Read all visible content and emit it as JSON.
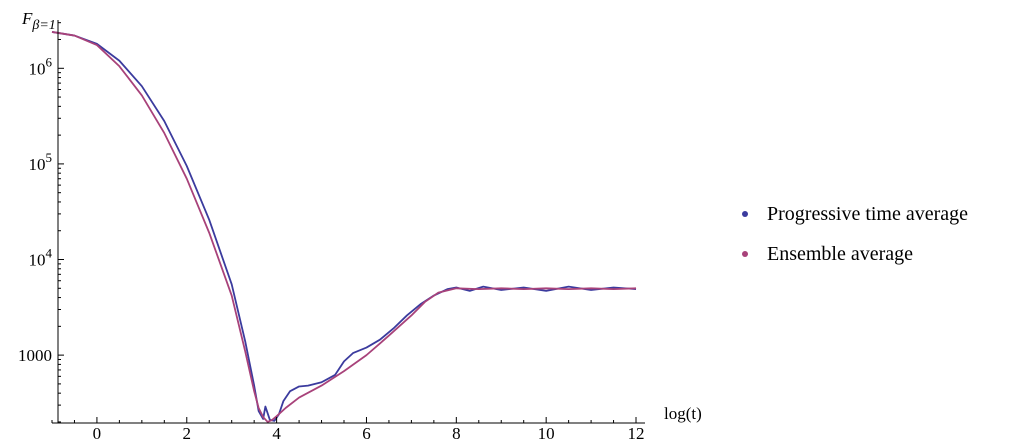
{
  "chart_data": {
    "type": "line",
    "y_title_base": "F",
    "y_title_sub": "β=1",
    "xlabel": "log(t)",
    "x_log_scale": false,
    "y_log_scale": true,
    "xlim": [
      -1,
      12.2
    ],
    "ylim": [
      195,
      3200000
    ],
    "x_ticks": [
      0,
      2,
      4,
      6,
      8,
      10,
      12
    ],
    "y_ticks": [
      {
        "value": 1000000,
        "base": "10",
        "exp": "6"
      },
      {
        "value": 100000,
        "base": "10",
        "exp": "5"
      },
      {
        "value": 10000,
        "base": "10",
        "exp": "4"
      },
      {
        "value": 1000,
        "base": "1000",
        "exp": ""
      }
    ],
    "grid": false,
    "legend_position": "right",
    "series": [
      {
        "name": "Progressive time average",
        "color": "#3b3b9e",
        "points": [
          [
            -1,
            2400000
          ],
          [
            -0.5,
            2200000
          ],
          [
            0,
            1800000
          ],
          [
            0.5,
            1200000
          ],
          [
            1,
            650000
          ],
          [
            1.5,
            280000
          ],
          [
            2,
            95000
          ],
          [
            2.5,
            26000
          ],
          [
            3,
            5500
          ],
          [
            3.3,
            1400
          ],
          [
            3.5,
            480
          ],
          [
            3.6,
            260
          ],
          [
            3.7,
            215
          ],
          [
            3.75,
            290
          ],
          [
            3.85,
            210
          ],
          [
            3.95,
            205
          ],
          [
            4.05,
            240
          ],
          [
            4.15,
            330
          ],
          [
            4.3,
            420
          ],
          [
            4.5,
            470
          ],
          [
            4.7,
            480
          ],
          [
            5.0,
            520
          ],
          [
            5.3,
            620
          ],
          [
            5.5,
            860
          ],
          [
            5.7,
            1050
          ],
          [
            6.0,
            1200
          ],
          [
            6.3,
            1450
          ],
          [
            6.6,
            1900
          ],
          [
            6.9,
            2600
          ],
          [
            7.2,
            3400
          ],
          [
            7.5,
            4200
          ],
          [
            7.8,
            4900
          ],
          [
            8.0,
            5100
          ],
          [
            8.3,
            4700
          ],
          [
            8.6,
            5200
          ],
          [
            9.0,
            4800
          ],
          [
            9.5,
            5100
          ],
          [
            10.0,
            4700
          ],
          [
            10.5,
            5200
          ],
          [
            11.0,
            4800
          ],
          [
            11.5,
            5100
          ],
          [
            12.0,
            4900
          ]
        ]
      },
      {
        "name": "Ensemble average",
        "color": "#a8427a",
        "points": [
          [
            -1,
            2400000
          ],
          [
            -0.5,
            2200000
          ],
          [
            0,
            1750000
          ],
          [
            0.5,
            1050000
          ],
          [
            1,
            520000
          ],
          [
            1.5,
            210000
          ],
          [
            2,
            70000
          ],
          [
            2.5,
            19000
          ],
          [
            3,
            4200
          ],
          [
            3.3,
            1100
          ],
          [
            3.5,
            420
          ],
          [
            3.6,
            280
          ],
          [
            3.7,
            225
          ],
          [
            3.8,
            200
          ],
          [
            3.9,
            210
          ],
          [
            4.0,
            230
          ],
          [
            4.2,
            280
          ],
          [
            4.5,
            360
          ],
          [
            5.0,
            480
          ],
          [
            5.5,
            680
          ],
          [
            6.0,
            1000
          ],
          [
            6.5,
            1600
          ],
          [
            7.0,
            2600
          ],
          [
            7.3,
            3600
          ],
          [
            7.6,
            4500
          ],
          [
            8.0,
            5000
          ],
          [
            8.5,
            4900
          ],
          [
            9.0,
            5000
          ],
          [
            9.5,
            4900
          ],
          [
            10.0,
            5000
          ],
          [
            10.5,
            4900
          ],
          [
            11.0,
            5000
          ],
          [
            11.5,
            4900
          ],
          [
            12.0,
            5000
          ]
        ]
      }
    ]
  }
}
